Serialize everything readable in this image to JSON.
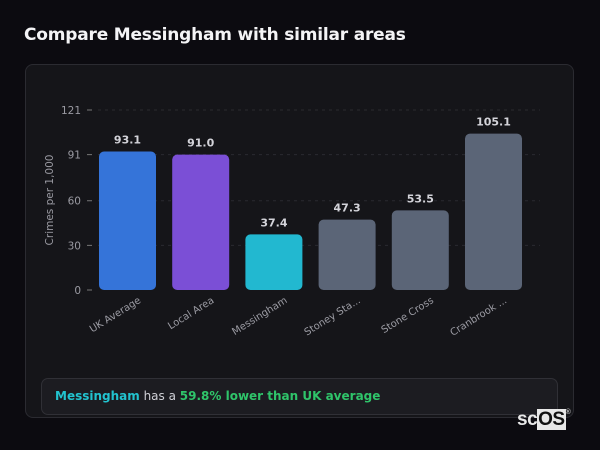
{
  "header": {
    "title": "Compare Messingham with similar areas"
  },
  "chart_data": {
    "type": "bar",
    "categories": [
      "UK Average",
      "Local Area",
      "Messingham",
      "Stoney Sta...",
      "Stone Cross",
      "Cranbrook ..."
    ],
    "values": [
      93.1,
      91.0,
      37.4,
      47.3,
      53.5,
      105.1
    ],
    "value_labels": [
      "93.1",
      "91.0",
      "37.4",
      "47.3",
      "53.5",
      "105.1"
    ],
    "colors": [
      "#3574d9",
      "#7b4fd6",
      "#22b8d0",
      "#5b6577",
      "#5b6577",
      "#5b6577"
    ],
    "ylabel": "Crimes per 1,000",
    "xlabel": "",
    "yticks": [
      0,
      30,
      60,
      91,
      121
    ],
    "ylim": [
      0,
      121
    ],
    "grid": true
  },
  "summary": {
    "area": "Messingham",
    "mid": " has a ",
    "result": "59.8% lower than UK average",
    "area_color": "#22c3cf",
    "result_color": "#2fc46a"
  },
  "logo": {
    "text_a": "sc",
    "text_b": "OS",
    "mark": "®"
  }
}
